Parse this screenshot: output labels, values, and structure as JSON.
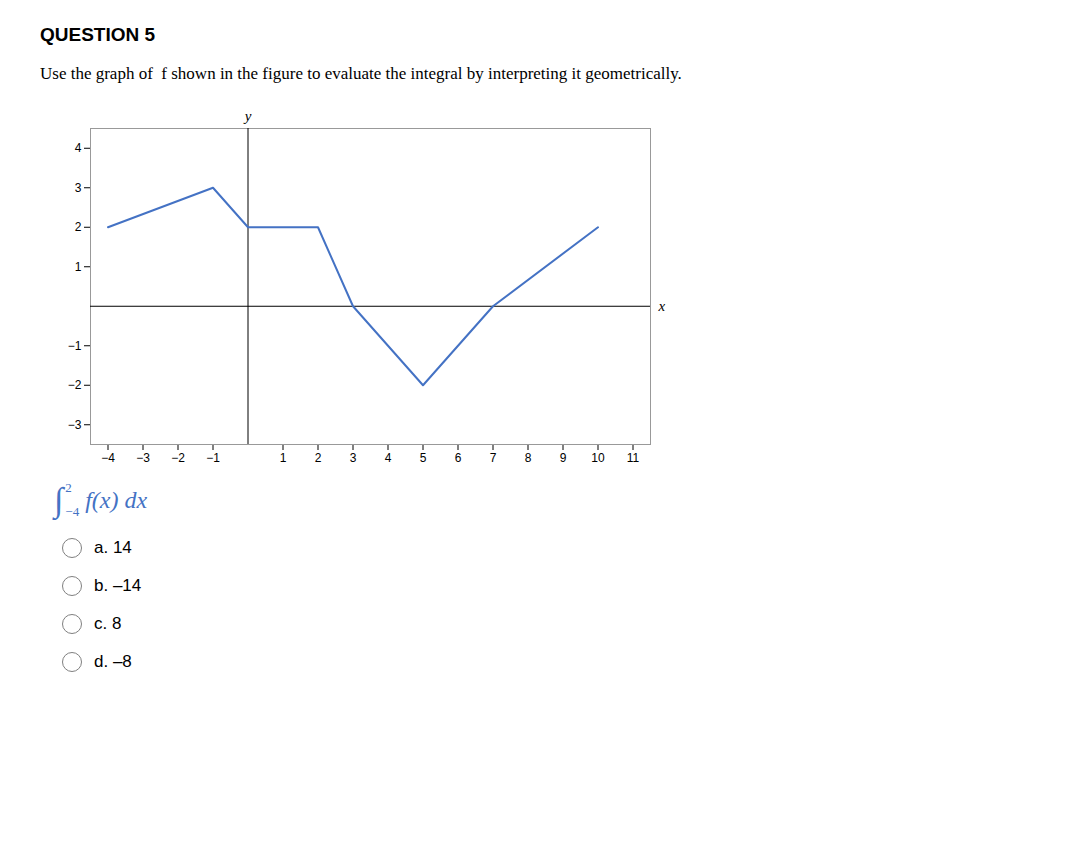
{
  "chart_data": {
    "type": "line",
    "title": "QUESTION 5",
    "subtitle": "Use the graph of  f shown in the figure to evaluate the integral by interpreting it geometrically.",
    "x": [
      -4,
      -1,
      0,
      2,
      3,
      5,
      7,
      10
    ],
    "values": [
      2,
      3,
      2,
      2,
      0,
      -2,
      0,
      2
    ],
    "color": "#4472C4",
    "xlabel": "x",
    "ylabel": "y",
    "xlim": [
      -4.5,
      11.5
    ],
    "ylim": [
      -3.5,
      4.5
    ],
    "xticks": [
      -4,
      -3,
      -2,
      -1,
      1,
      2,
      3,
      4,
      5,
      6,
      7,
      8,
      9,
      10,
      11
    ],
    "yticks": [
      -3,
      -2,
      -1,
      1,
      2,
      3,
      4
    ],
    "grid": false,
    "annotations": [
      {
        "symbol": "∫",
        "lower": -4,
        "upper": 2,
        "text": "f(x) dx",
        "color": "#4472C4"
      },
      "a. 14",
      "b. –14",
      "c. 8",
      "d. –8"
    ]
  }
}
